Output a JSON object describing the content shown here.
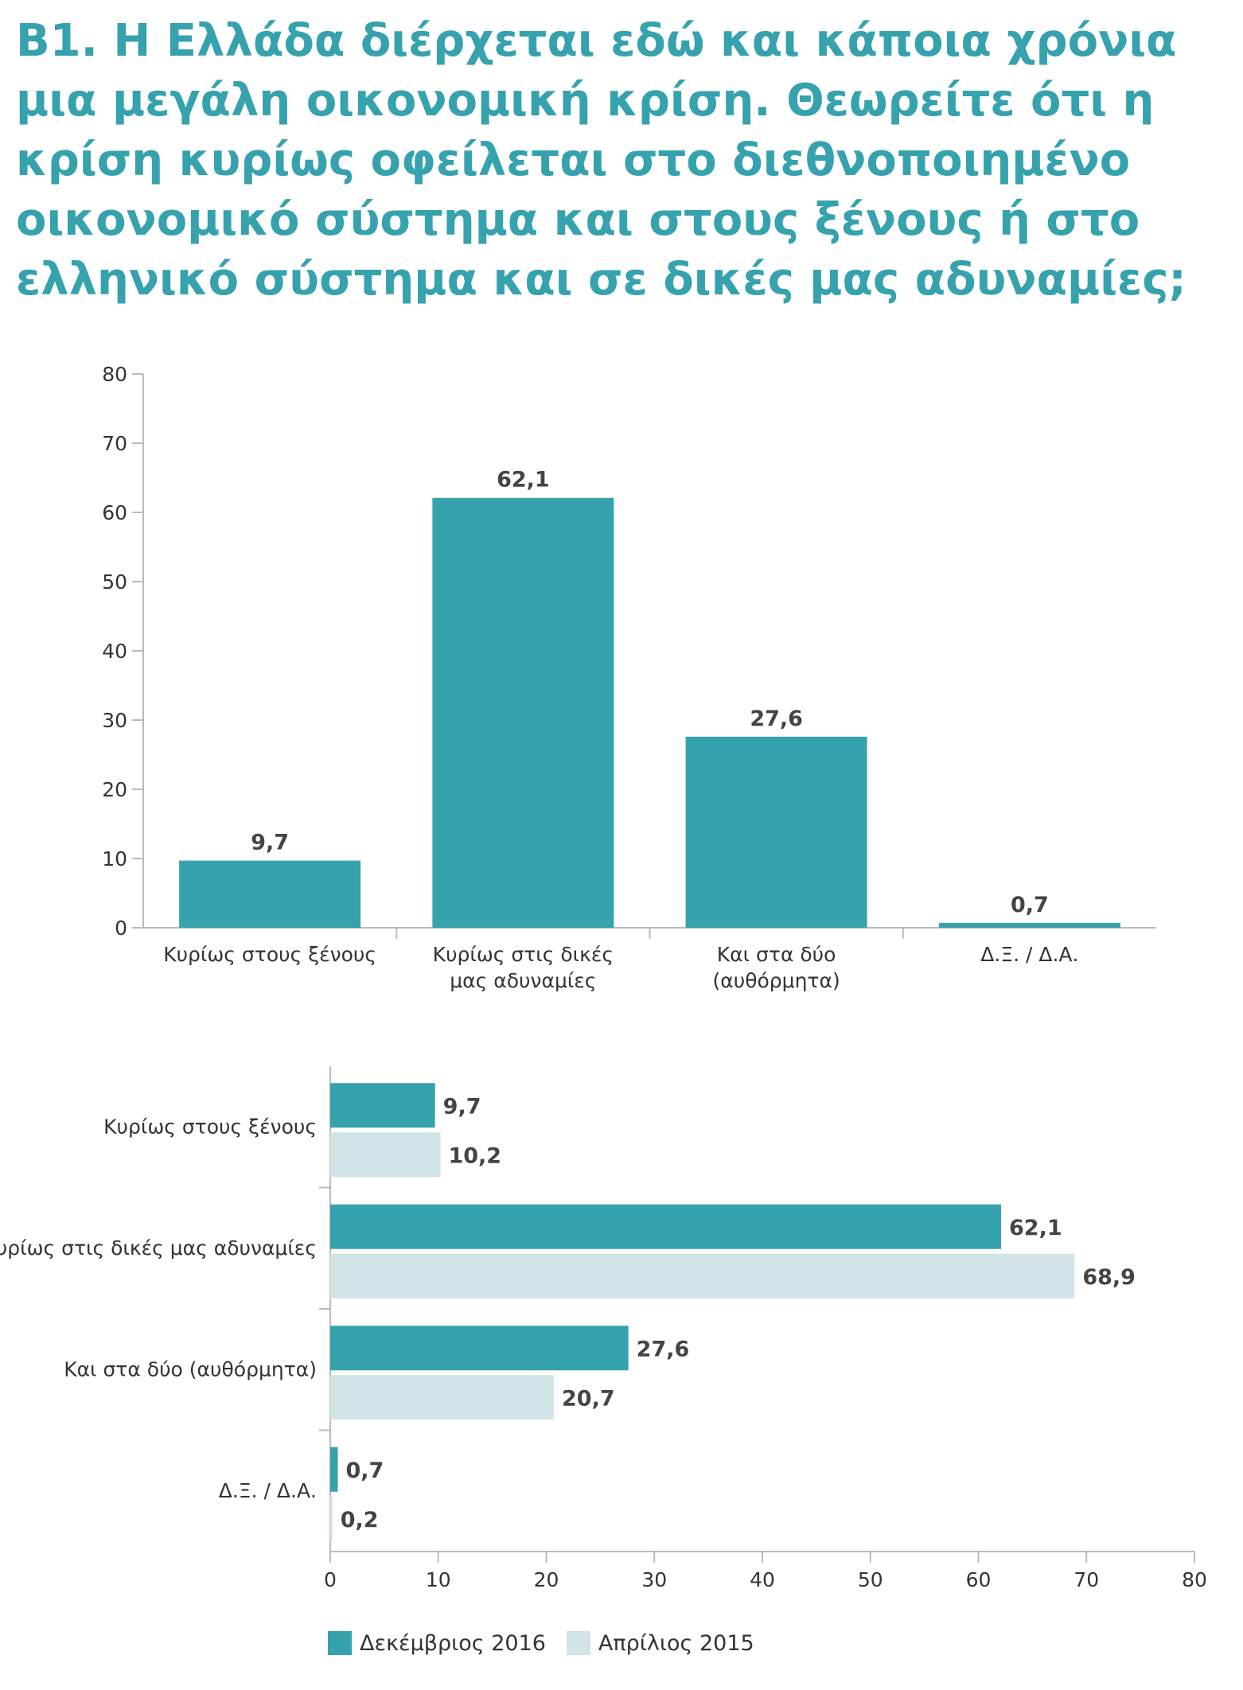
{
  "title": "Β1. Η Ελλάδα διέρχεται εδώ και κάποια χρόνια μια μεγάλη οικονομική κρίση. Θεωρείτε ότι η κρίση κυρίως οφείλεται στο διεθνοποιημένο οικονομικό σύστημα και στους ξένους ή στο ελληνικό σύστημα και σε δικές μας αδυναμίες;",
  "colors": {
    "dec2016": "#35a2ad",
    "apr2015": "#d2e4e7",
    "title": "#35a2ad",
    "axis": "#bbbbbb"
  },
  "legend": {
    "dec2016": "Δεκέμβριος 2016",
    "apr2015": "Απρίλιος 2015"
  },
  "chart_data": [
    {
      "type": "bar",
      "orientation": "vertical",
      "categories": [
        "Κυρίως στους ξένους",
        "Κυρίως στις δικές μας αδυναμίες",
        "Και στα δύο (αυθόρμητα)",
        "Δ.Ξ. / Δ.Α."
      ],
      "category_lines": [
        [
          "Κυρίως στους ξένους"
        ],
        [
          "Κυρίως στις δικές",
          "μας αδυναμίες"
        ],
        [
          "Και στα δύο",
          "(αυθόρμητα)"
        ],
        [
          "Δ.Ξ. / Δ.Α."
        ]
      ],
      "values": [
        9.7,
        62.1,
        27.6,
        0.7
      ],
      "value_labels": [
        "9,7",
        "62,1",
        "27,6",
        "0,7"
      ],
      "ylim": [
        0,
        80
      ],
      "yticks": [
        0,
        10,
        20,
        30,
        40,
        50,
        60,
        70,
        80
      ],
      "grid": false
    },
    {
      "type": "bar",
      "orientation": "horizontal",
      "categories": [
        "Κυρίως στους ξένους",
        "Κυρίως στις δικές μας αδυναμίες",
        "Και στα δύο (αυθόρμητα)",
        "Δ.Ξ. / Δ.Α."
      ],
      "series": [
        {
          "name": "Δεκέμβριος 2016",
          "values": [
            9.7,
            62.1,
            27.6,
            0.7
          ],
          "value_labels": [
            "9,7",
            "62,1",
            "27,6",
            "0,7"
          ]
        },
        {
          "name": "Απρίλιος 2015",
          "values": [
            10.2,
            68.9,
            20.7,
            0.2
          ],
          "value_labels": [
            "10,2",
            "68,9",
            "20,7",
            "0,2"
          ]
        }
      ],
      "xlim": [
        0,
        80
      ],
      "xticks": [
        0,
        10,
        20,
        30,
        40,
        50,
        60,
        70,
        80
      ],
      "legend_position": "bottom-left",
      "grid": false
    }
  ]
}
